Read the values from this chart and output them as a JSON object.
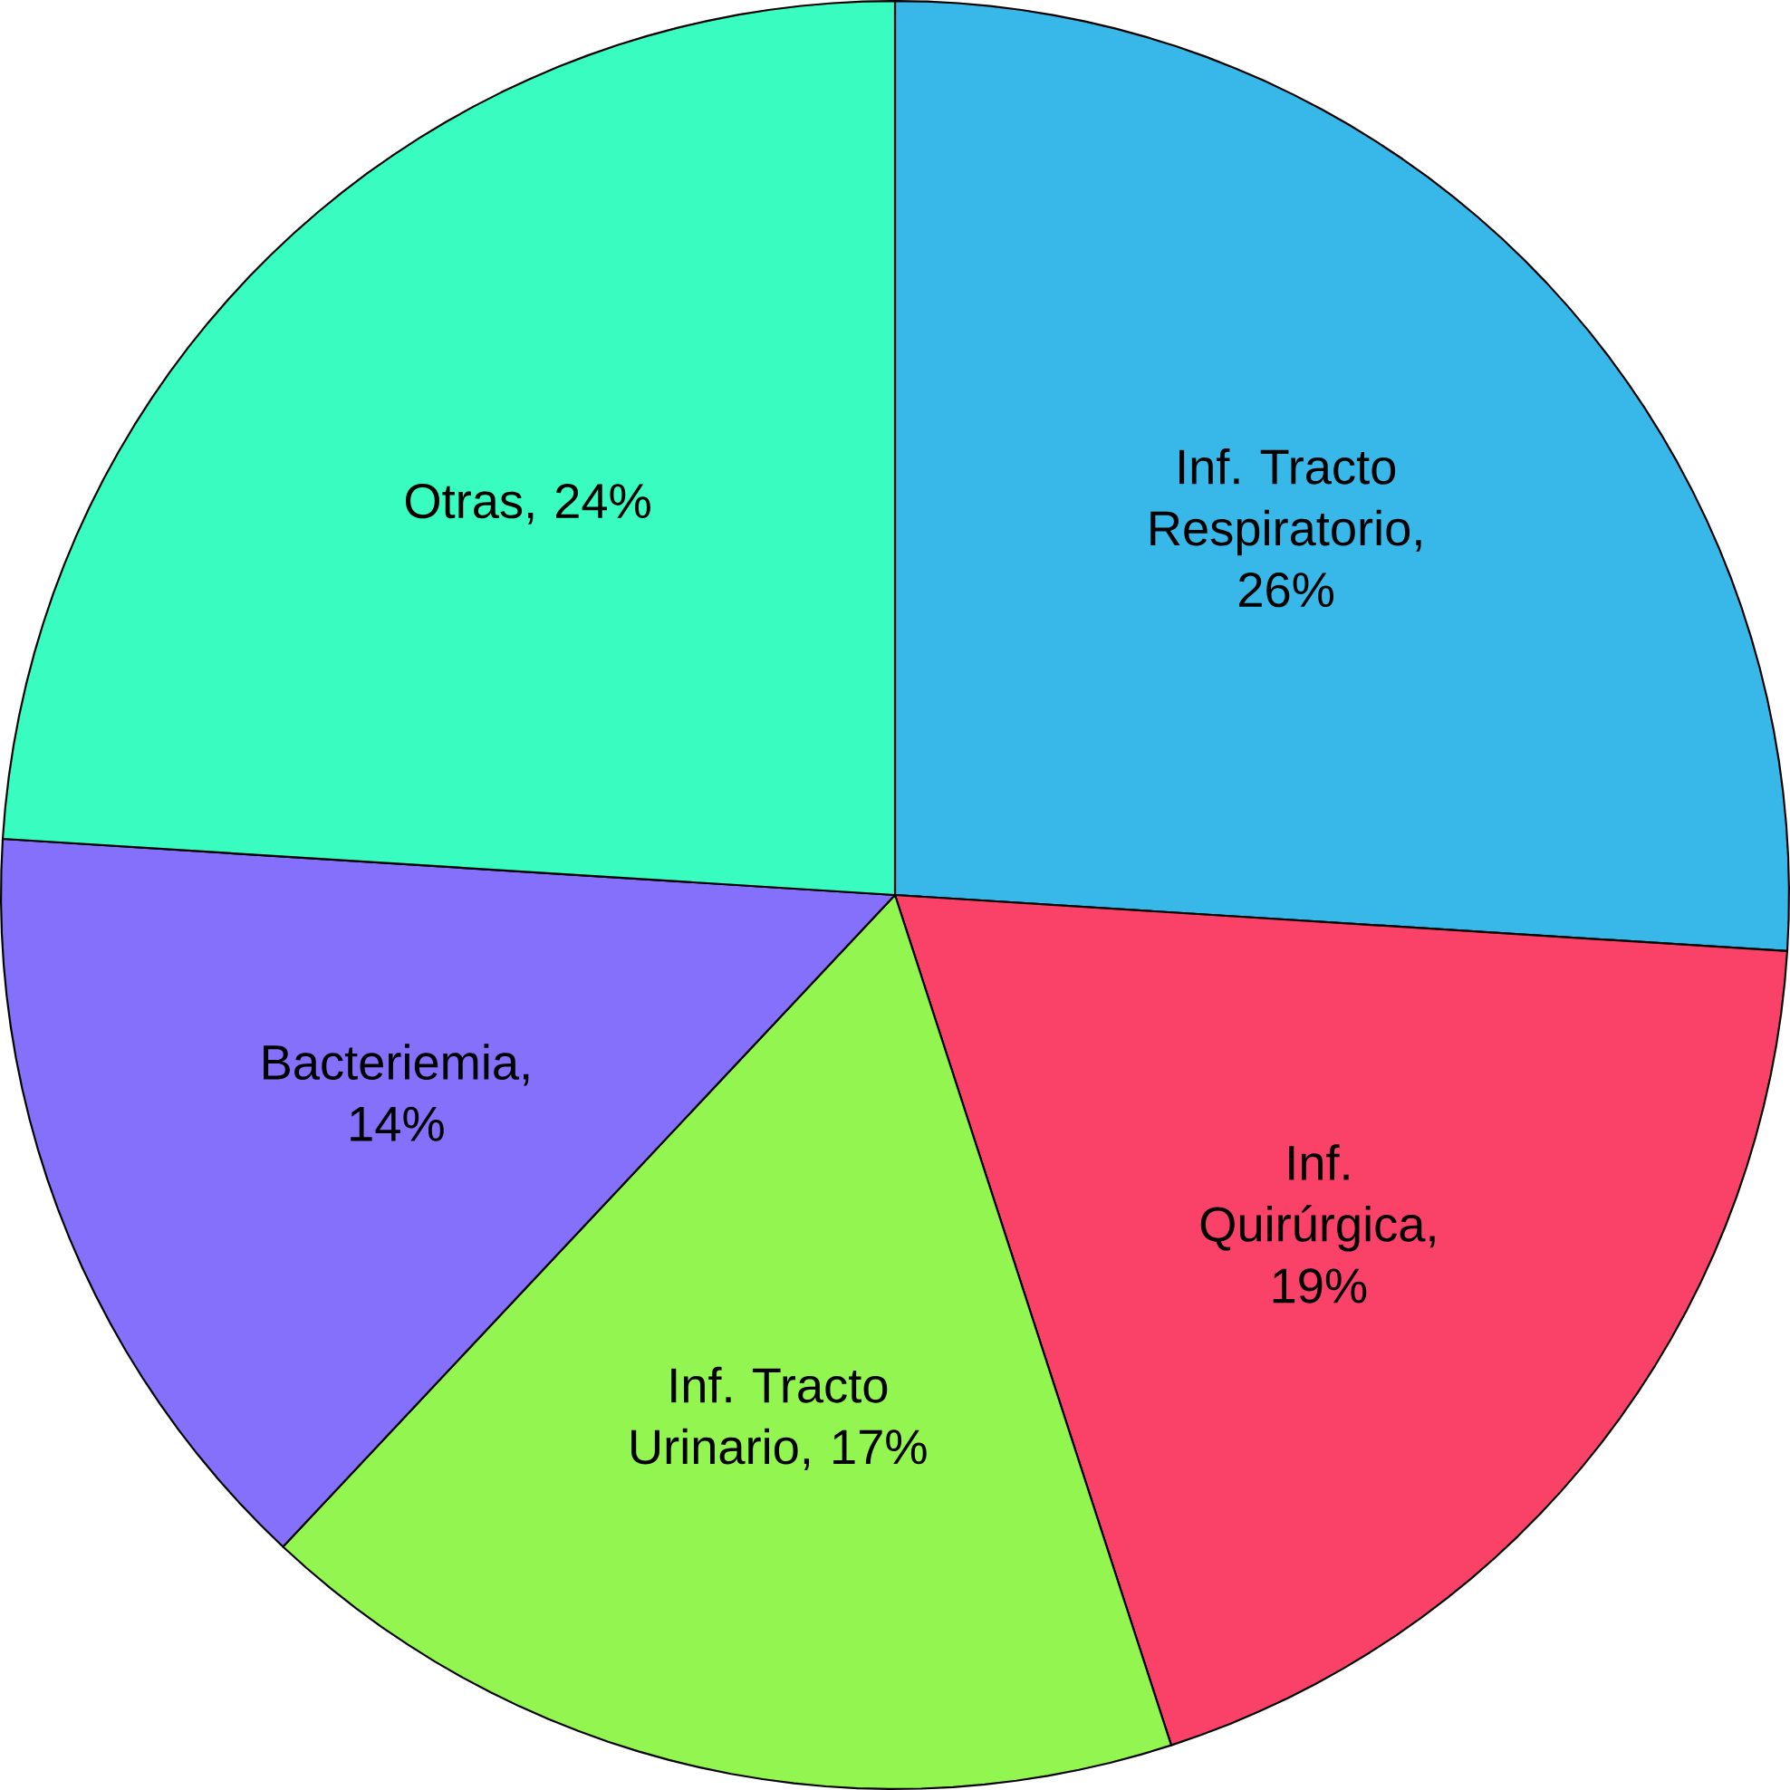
{
  "chart_data": {
    "type": "pie",
    "categories": [
      null,
      null,
      null,
      null,
      null
    ],
    "values": [
      26,
      19,
      17,
      14,
      24
    ],
    "value_labels": [
      "Inf. Tracto Respiratorio, 26%",
      "Inf. Quirúrgica, 19%",
      "Inf. Tracto Urinario, 17%",
      "Bacteriemia, 14%",
      "Otras, 24%"
    ],
    "colors": [
      "#38b8e8",
      "#fa4268",
      "#92f550",
      "#8470fa",
      "#38fcc0"
    ]
  }
}
